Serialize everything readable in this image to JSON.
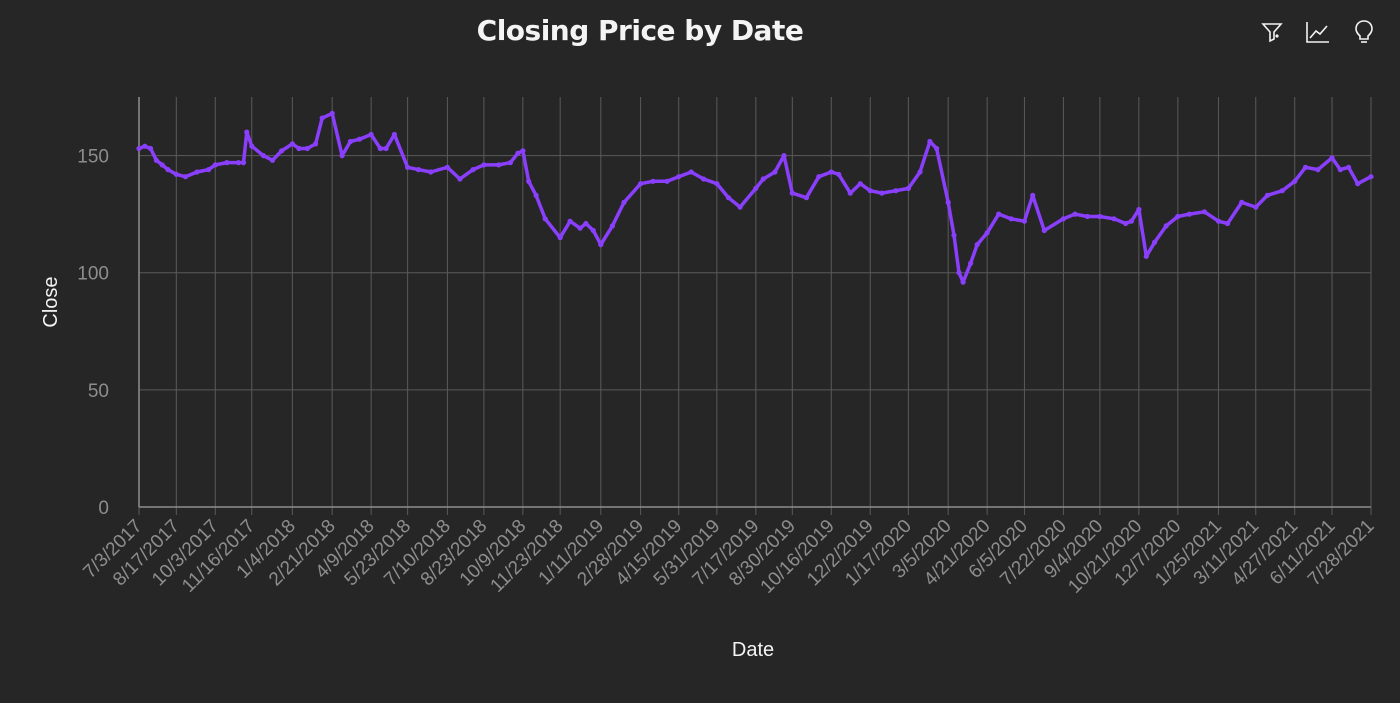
{
  "chart_data": {
    "type": "line",
    "title": "Closing Price by Date",
    "xlabel": "Date",
    "ylabel": "Close",
    "ylim": [
      0,
      175
    ],
    "yticks": [
      0,
      50,
      100,
      150
    ],
    "grid": true,
    "line_color": "#8a3ffc",
    "x_tick_labels": [
      "7/3/2017",
      "8/17/2017",
      "10/3/2017",
      "11/16/2017",
      "1/4/2018",
      "2/21/2018",
      "4/9/2018",
      "5/23/2018",
      "7/10/2018",
      "8/23/2018",
      "10/9/2018",
      "11/23/2018",
      "1/11/2019",
      "2/28/2019",
      "4/15/2019",
      "5/31/2019",
      "7/17/2019",
      "8/30/2019",
      "10/16/2019",
      "12/2/2019",
      "1/17/2020",
      "3/5/2020",
      "4/21/2020",
      "6/5/2020",
      "7/22/2020",
      "9/4/2020",
      "10/21/2020",
      "12/7/2020",
      "1/25/2021",
      "3/11/2021",
      "4/27/2021",
      "6/11/2021",
      "7/28/2021"
    ],
    "series": [
      {
        "x": [
          "7/3/2017",
          "7/10/2017",
          "7/17/2017",
          "7/24/2017",
          "7/31/2017",
          "8/7/2017",
          "8/17/2017",
          "8/28/2017",
          "9/11/2017",
          "9/25/2017",
          "10/3/2017",
          "10/17/2017",
          "10/31/2017",
          "11/6/2017",
          "11/10/2017",
          "11/16/2017",
          "11/30/2017",
          "12/11/2017",
          "12/22/2017",
          "1/4/2018",
          "1/12/2018",
          "1/22/2018",
          "2/1/2018",
          "2/9/2018",
          "2/21/2018",
          "3/5/2018",
          "3/15/2018",
          "3/26/2018",
          "4/9/2018",
          "4/20/2018",
          "4/27/2018",
          "5/7/2018",
          "5/23/2018",
          "6/5/2018",
          "6/20/2018",
          "7/10/2018",
          "7/25/2018",
          "8/10/2018",
          "8/23/2018",
          "9/10/2018",
          "9/24/2018",
          "10/3/2018",
          "10/9/2018",
          "10/16/2018",
          "10/25/2018",
          "11/5/2018",
          "11/23/2018",
          "12/5/2018",
          "12/17/2018",
          "12/24/2018",
          "1/2/2019",
          "1/11/2019",
          "1/25/2019",
          "2/8/2019",
          "2/28/2019",
          "3/15/2019",
          "4/1/2019",
          "4/15/2019",
          "4/30/2019",
          "5/15/2019",
          "5/31/2019",
          "6/14/2019",
          "6/28/2019",
          "7/17/2019",
          "7/26/2019",
          "8/9/2019",
          "8/20/2019",
          "8/30/2019",
          "9/16/2019",
          "10/1/2019",
          "10/16/2019",
          "10/25/2019",
          "11/8/2019",
          "11/20/2019",
          "12/2/2019",
          "12/16/2019",
          "1/2/2020",
          "1/17/2020",
          "1/31/2020",
          "2/12/2020",
          "2/20/2020",
          "3/5/2020",
          "3/12/2020",
          "3/18/2020",
          "3/23/2020",
          "4/1/2020",
          "4/9/2020",
          "4/21/2020",
          "5/5/2020",
          "5/20/2020",
          "6/5/2020",
          "6/15/2020",
          "6/29/2020",
          "7/22/2020",
          "8/5/2020",
          "8/20/2020",
          "9/4/2020",
          "9/21/2020",
          "10/5/2020",
          "10/12/2020",
          "10/21/2020",
          "10/30/2020",
          "11/9/2020",
          "11/23/2020",
          "12/7/2020",
          "12/21/2020",
          "1/8/2021",
          "1/25/2021",
          "2/5/2021",
          "2/22/2021",
          "3/11/2021",
          "3/25/2021",
          "4/12/2021",
          "4/27/2021",
          "5/10/2021",
          "5/25/2021",
          "6/11/2021",
          "6/21/2021",
          "7/1/2021",
          "7/12/2021",
          "7/28/2021"
        ],
        "values": [
          153,
          154,
          153,
          148,
          146,
          144,
          142,
          141,
          143,
          144,
          146,
          147,
          147,
          147,
          160,
          154,
          150,
          148,
          152,
          155,
          153,
          153,
          155,
          166,
          168,
          150,
          156,
          157,
          159,
          153,
          153,
          159,
          145,
          144,
          143,
          145,
          140,
          144,
          146,
          146,
          147,
          151,
          152,
          139,
          133,
          123,
          115,
          122,
          119,
          121,
          118,
          112,
          120,
          130,
          138,
          139,
          139,
          141,
          143,
          140,
          138,
          132,
          128,
          136,
          140,
          143,
          150,
          134,
          132,
          141,
          143,
          142,
          134,
          138,
          135,
          134,
          135,
          136,
          143,
          156,
          153,
          130,
          116,
          100,
          96,
          104,
          112,
          117,
          125,
          123,
          122,
          133,
          118,
          123,
          125,
          124,
          124,
          123,
          121,
          122,
          127,
          107,
          113,
          120,
          124,
          125,
          126,
          122,
          121,
          130,
          128,
          133,
          135,
          139,
          145,
          144,
          149,
          144,
          145,
          138,
          141
        ]
      }
    ]
  },
  "toolbar": {
    "icons": [
      "filter-icon",
      "trend-icon",
      "lightbulb-icon"
    ]
  }
}
